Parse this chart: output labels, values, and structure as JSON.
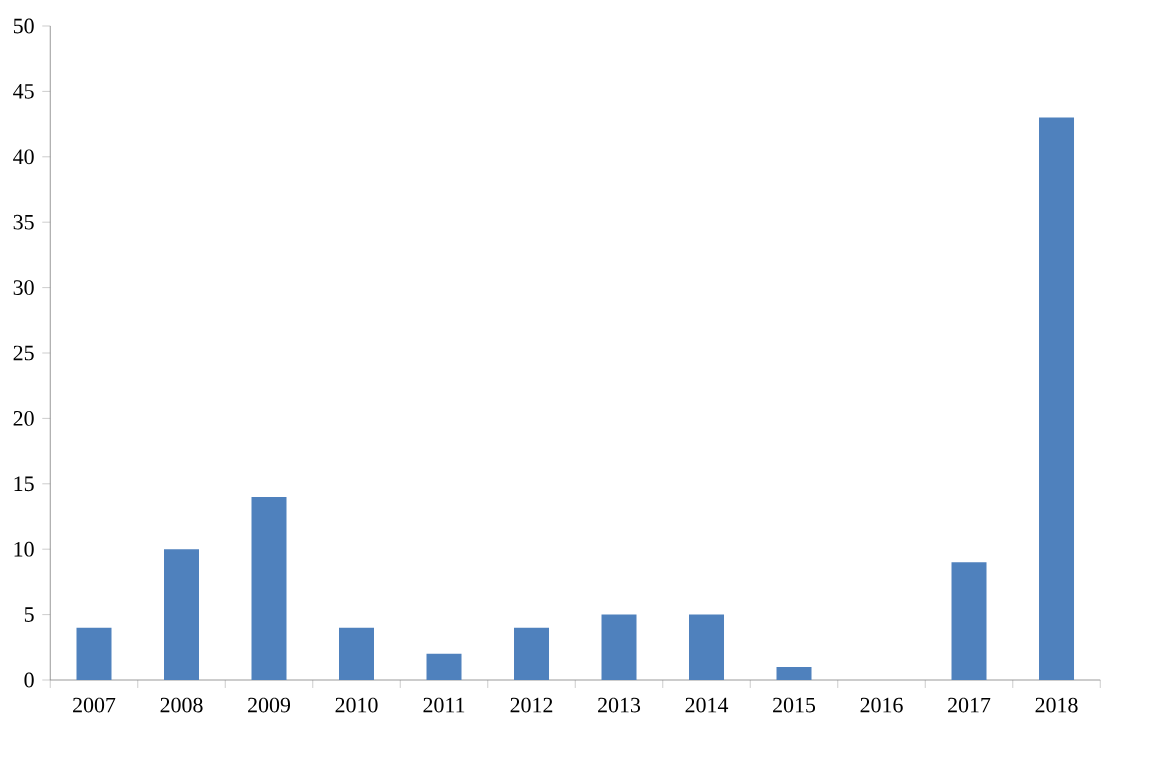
{
  "chart_data": {
    "type": "bar",
    "categories": [
      "2007",
      "2008",
      "2009",
      "2010",
      "2011",
      "2012",
      "2013",
      "2014",
      "2015",
      "2016",
      "2017",
      "2018"
    ],
    "values": [
      4,
      10,
      14,
      4,
      2,
      4,
      5,
      5,
      1,
      0,
      9,
      43
    ],
    "color": "#4f81bd",
    "ylim": [
      0,
      50
    ],
    "yticks": [
      0,
      5,
      10,
      15,
      20,
      25,
      30,
      35,
      40,
      45,
      50
    ],
    "grid": false
  }
}
